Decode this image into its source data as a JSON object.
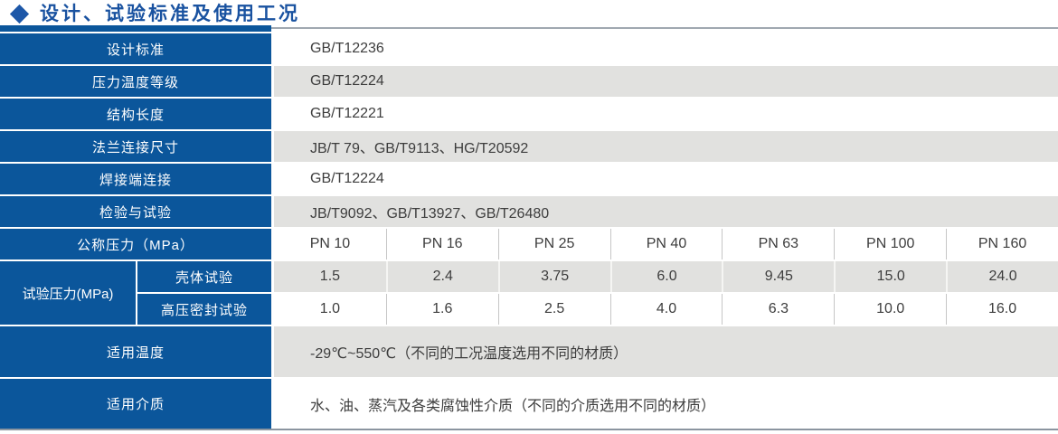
{
  "title": "设计、试验标准及使用工况",
  "colors": {
    "accent_blue": "#0b569b",
    "title_blue": "#1952a0",
    "row_gray": "#e1e1df",
    "top_rule_gray": "#a0a8b0",
    "bottom_rule_gray": "#8b95a0",
    "value_text": "#3d3d3d"
  },
  "table": {
    "standard_rows": [
      {
        "label": "设计标准",
        "value": "GB/T12236"
      },
      {
        "label": "压力温度等级",
        "value": "GB/T12224"
      },
      {
        "label": "结构长度",
        "value": "GB/T12221"
      },
      {
        "label": "法兰连接尺寸",
        "value": "JB/T 79、GB/T9113、HG/T20592"
      },
      {
        "label": "焊接端连接",
        "value": "GB/T12224"
      },
      {
        "label": "检验与试验",
        "value": "JB/T9092、GB/T13927、GB/T26480"
      }
    ],
    "nominal_pressure": {
      "label": "公称压力（MPa）",
      "columns": [
        "PN 10",
        "PN 16",
        "PN 25",
        "PN 40",
        "PN 63",
        "PN 100",
        "PN 160"
      ]
    },
    "test_pressure": {
      "label": "试验压力(MPa)",
      "sub_rows": [
        {
          "label": "壳体试验",
          "values": [
            "1.5",
            "2.4",
            "3.75",
            "6.0",
            "9.45",
            "15.0",
            "24.0"
          ]
        },
        {
          "label": "高压密封试验",
          "values": [
            "1.0",
            "1.6",
            "2.5",
            "4.0",
            "6.3",
            "10.0",
            "16.0"
          ]
        }
      ]
    },
    "temperature": {
      "label": "适用温度",
      "value": "-29℃~550℃（不同的工况温度选用不同的材质）"
    },
    "medium": {
      "label": "适用介质",
      "value": "水、油、蒸汽及各类腐蚀性介质（不同的介质选用不同的材质）"
    }
  }
}
